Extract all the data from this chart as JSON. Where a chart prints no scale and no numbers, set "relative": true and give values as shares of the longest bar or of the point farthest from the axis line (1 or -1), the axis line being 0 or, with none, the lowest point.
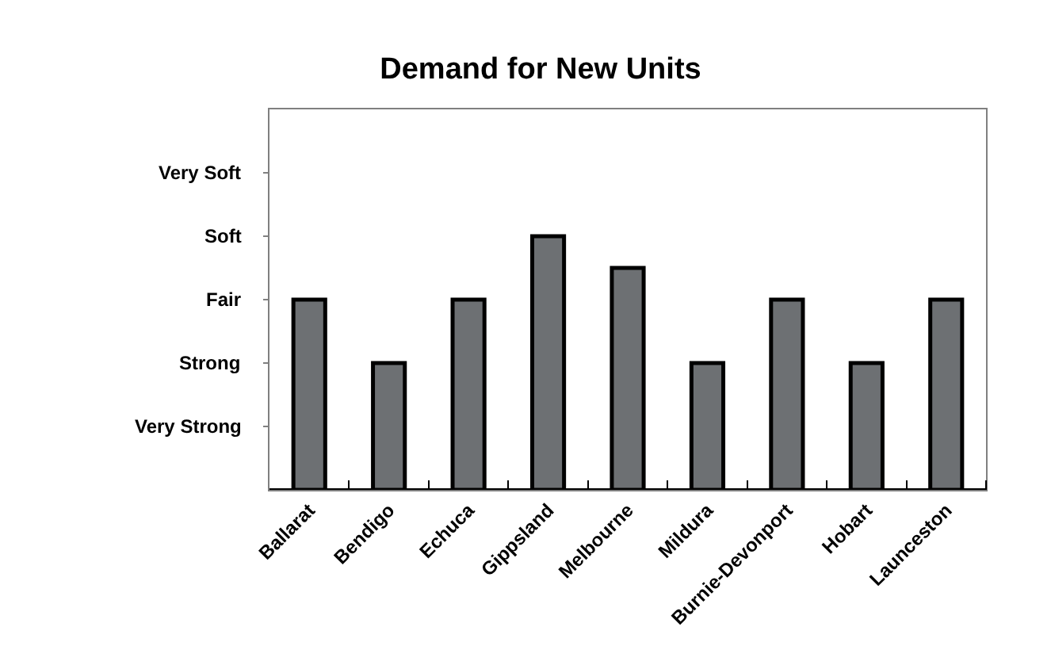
{
  "chart_data": {
    "type": "bar",
    "title": "Demand for New Units",
    "relative": true,
    "categories": [
      "Ballarat",
      "Bendigo",
      "Echuca",
      "Gippsland",
      "Melbourne",
      "Mildura",
      "Burnie-Devonport",
      "Hobart",
      "Launceston"
    ],
    "values": [
      0.75,
      0.5,
      0.75,
      1,
      0.875,
      0.5,
      0.75,
      0.5,
      0.75
    ],
    "color": "#6d7073",
    "annotations": [
      "Very Strong",
      "Strong",
      "Fair",
      "Soft",
      "Very Soft"
    ]
  }
}
